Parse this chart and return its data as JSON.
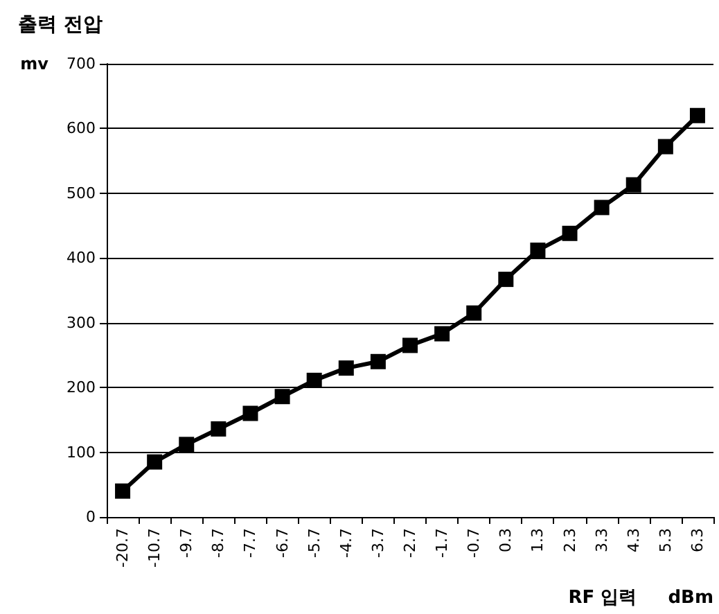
{
  "chart_data": {
    "type": "line",
    "title": "출력 전압",
    "ylabel": "mv",
    "xlabel": "RF 입력     dBm",
    "categories": [
      "-20.7",
      "-10.7",
      "-9.7",
      "-8.7",
      "-7.7",
      "-6.7",
      "-5.7",
      "-4.7",
      "-3.7",
      "-2.7",
      "-1.7",
      "-0.7",
      "0.3",
      "1.3",
      "2.3",
      "3.3",
      "4.3",
      "5.3",
      "6.3"
    ],
    "series": [
      {
        "color": "#000000",
        "values": [
          40,
          85,
          112,
          136,
          160,
          186,
          211,
          230,
          240,
          265,
          283,
          315,
          367,
          412,
          438,
          478,
          513,
          572,
          620
        ]
      }
    ],
    "ylim": [
      0,
      700
    ],
    "yticks": [
      0,
      100,
      200,
      300,
      400,
      500,
      600,
      700
    ],
    "grid": "y",
    "marker": "square",
    "line_style": "solid"
  }
}
